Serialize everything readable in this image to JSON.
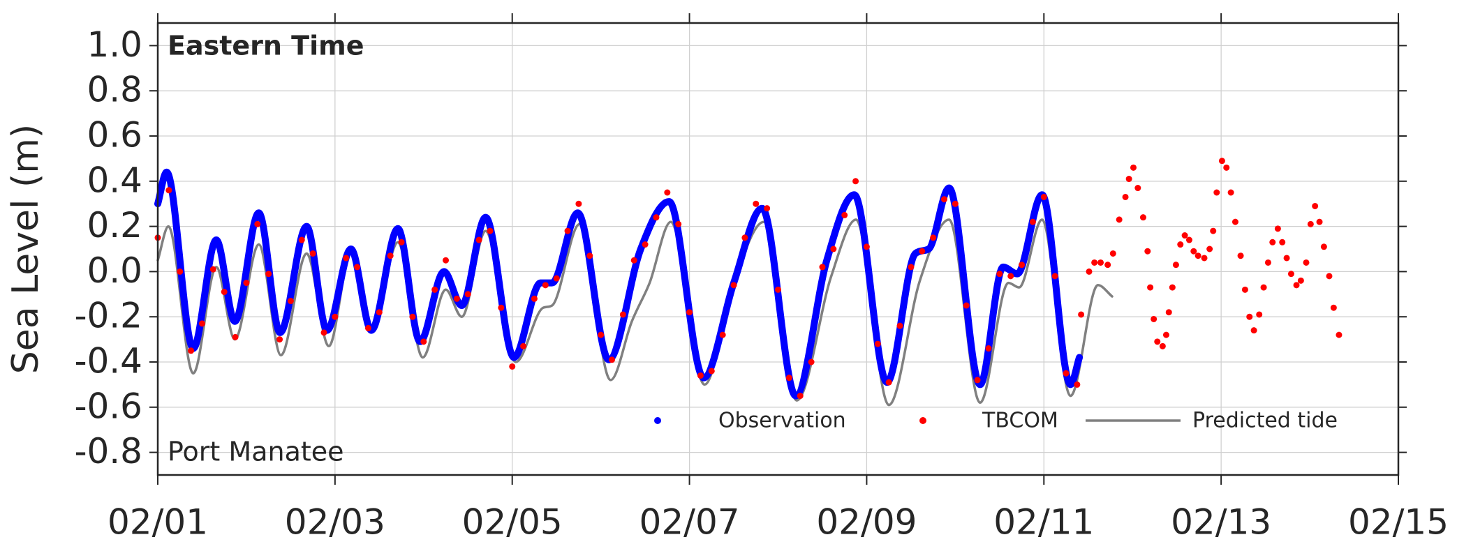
{
  "chart_data": {
    "type": "line",
    "annotations": [
      "Eastern Time",
      "Port Manatee"
    ],
    "ylabel": "Sea Level (m)",
    "xlim": [
      1,
      15
    ],
    "xticks": [
      {
        "value": 1,
        "label": "02/01"
      },
      {
        "value": 3,
        "label": "02/03"
      },
      {
        "value": 5,
        "label": "02/05"
      },
      {
        "value": 7,
        "label": "02/07"
      },
      {
        "value": 9,
        "label": "02/09"
      },
      {
        "value": 11,
        "label": "02/11"
      },
      {
        "value": 13,
        "label": "02/13"
      },
      {
        "value": 15,
        "label": "02/15"
      }
    ],
    "ylim": [
      -0.9,
      1.1
    ],
    "yticks": [
      -0.8,
      -0.6,
      -0.4,
      -0.2,
      {
        "value": 0,
        "label": "0.0"
      },
      0.2,
      0.4,
      0.6,
      0.8,
      {
        "value": 1,
        "label": "1.0"
      }
    ],
    "grid": true,
    "legend": "lower right",
    "series": [
      {
        "name": "Observation",
        "color": "#0000ff",
        "mode": "dense-markers",
        "x": [
          1.0,
          1.1,
          1.4,
          1.66,
          1.87,
          2.14,
          2.38,
          2.68,
          2.91,
          3.18,
          3.41,
          3.71,
          3.96,
          4.23,
          4.43,
          4.7,
          5.02,
          5.32,
          5.45,
          5.74,
          6.09,
          6.45,
          6.77,
          7.16,
          7.5,
          7.82,
          8.2,
          8.55,
          8.86,
          9.23,
          9.55,
          9.7,
          9.93,
          10.28,
          10.54,
          10.7,
          10.98,
          11.3,
          11.4
        ],
        "values": [
          0.3,
          0.44,
          -0.34,
          0.14,
          -0.22,
          0.26,
          -0.27,
          0.2,
          -0.26,
          0.1,
          -0.26,
          0.19,
          -0.31,
          0.0,
          -0.15,
          0.24,
          -0.38,
          -0.05,
          -0.05,
          0.26,
          -0.39,
          0.1,
          0.31,
          -0.47,
          -0.05,
          0.28,
          -0.55,
          0.05,
          0.34,
          -0.49,
          0.08,
          0.1,
          0.37,
          -0.5,
          0.02,
          -0.01,
          0.34,
          -0.5,
          -0.38
        ]
      },
      {
        "name": "TBCOM",
        "color": "#ff0000",
        "mode": "markers",
        "x": [
          1.0,
          1.125,
          1.25,
          1.375,
          1.5,
          1.625,
          1.75,
          1.875,
          2.0,
          2.125,
          2.25,
          2.375,
          2.5,
          2.625,
          2.75,
          2.875,
          3.0,
          3.125,
          3.25,
          3.375,
          3.5,
          3.625,
          3.75,
          3.875,
          4.0,
          4.125,
          4.25,
          4.375,
          4.5,
          4.625,
          4.75,
          4.875,
          5.0,
          5.125,
          5.25,
          5.375,
          5.5,
          5.625,
          5.75,
          5.875,
          6.0,
          6.125,
          6.25,
          6.375,
          6.5,
          6.625,
          6.75,
          6.875,
          7.0,
          7.125,
          7.25,
          7.375,
          7.5,
          7.625,
          7.75,
          7.875,
          8.0,
          8.125,
          8.25,
          8.375,
          8.5,
          8.625,
          8.75,
          8.875,
          9.0,
          9.125,
          9.25,
          9.375,
          9.5,
          9.625,
          9.75,
          9.875,
          10.0,
          10.125,
          10.25,
          10.375,
          10.5,
          10.625,
          10.75,
          10.875,
          11.0,
          11.125,
          11.25,
          11.375,
          11.42,
          11.51,
          11.57,
          11.64,
          11.72,
          11.78,
          11.85,
          11.92,
          11.96,
          12.01,
          12.06,
          12.12,
          12.17,
          12.2,
          12.24,
          12.28,
          12.34,
          12.38,
          12.41,
          12.45,
          12.49,
          12.54,
          12.59,
          12.64,
          12.69,
          12.74,
          12.81,
          12.87,
          12.91,
          12.95,
          13.01,
          13.06,
          13.11,
          13.16,
          13.22,
          13.27,
          13.32,
          13.37,
          13.43,
          13.48,
          13.53,
          13.58,
          13.64,
          13.69,
          13.74,
          13.79,
          13.85,
          13.9,
          13.96,
          14.01,
          14.06,
          14.11,
          14.16,
          14.22,
          14.27,
          14.33
        ],
        "values": [
          0.15,
          0.36,
          0.0,
          -0.35,
          -0.23,
          0.01,
          -0.09,
          -0.29,
          -0.05,
          0.21,
          -0.01,
          -0.3,
          -0.13,
          0.14,
          0.08,
          -0.27,
          -0.2,
          0.06,
          0.02,
          -0.25,
          -0.18,
          0.07,
          0.13,
          -0.2,
          -0.31,
          -0.08,
          0.05,
          -0.12,
          -0.1,
          0.14,
          0.18,
          -0.16,
          -0.42,
          -0.33,
          -0.12,
          -0.06,
          -0.03,
          0.18,
          0.3,
          0.07,
          -0.28,
          -0.39,
          -0.19,
          0.05,
          0.12,
          0.24,
          0.35,
          0.21,
          -0.18,
          -0.46,
          -0.44,
          -0.28,
          -0.06,
          0.15,
          0.3,
          0.28,
          -0.08,
          -0.47,
          -0.55,
          -0.4,
          0.02,
          0.1,
          0.25,
          0.4,
          0.11,
          -0.32,
          -0.49,
          -0.24,
          0.02,
          0.09,
          0.15,
          0.32,
          0.3,
          -0.15,
          -0.48,
          -0.34,
          -0.01,
          -0.02,
          0.03,
          0.22,
          0.33,
          -0.02,
          -0.45,
          -0.5,
          -0.19,
          0.0,
          0.04,
          0.04,
          0.03,
          0.08,
          0.23,
          0.33,
          0.41,
          0.46,
          0.37,
          0.24,
          0.09,
          -0.07,
          -0.21,
          -0.31,
          -0.33,
          -0.28,
          -0.18,
          -0.07,
          0.03,
          0.12,
          0.16,
          0.14,
          0.09,
          0.07,
          0.06,
          0.1,
          0.18,
          0.35,
          0.49,
          0.46,
          0.35,
          0.22,
          0.07,
          -0.08,
          -0.2,
          -0.26,
          -0.19,
          -0.07,
          0.04,
          0.13,
          0.19,
          0.13,
          0.06,
          -0.01,
          -0.06,
          -0.04,
          0.04,
          0.21,
          0.29,
          0.22,
          0.11,
          -0.02,
          -0.16,
          -0.28
        ]
      },
      {
        "name": "Predicted tide",
        "color": "#808080",
        "mode": "lines",
        "x": [
          1.0,
          1.12,
          1.4,
          1.66,
          1.87,
          2.14,
          2.39,
          2.68,
          2.93,
          3.18,
          3.41,
          3.71,
          3.99,
          4.25,
          4.43,
          4.7,
          5.04,
          5.35,
          5.45,
          5.76,
          6.11,
          6.35,
          6.55,
          6.79,
          7.17,
          7.5,
          7.84,
          8.21,
          8.6,
          8.88,
          9.25,
          9.6,
          9.93,
          10.28,
          10.6,
          10.72,
          10.98,
          11.3,
          11.61,
          11.77
        ],
        "values": [
          0.05,
          0.2,
          -0.45,
          0.02,
          -0.3,
          0.12,
          -0.37,
          0.08,
          -0.33,
          0.08,
          -0.27,
          0.13,
          -0.38,
          -0.08,
          -0.2,
          0.18,
          -0.4,
          -0.16,
          -0.15,
          0.21,
          -0.48,
          -0.22,
          -0.05,
          0.22,
          -0.5,
          -0.05,
          0.22,
          -0.57,
          -0.02,
          0.23,
          -0.59,
          -0.04,
          0.23,
          -0.58,
          -0.05,
          -0.07,
          0.23,
          -0.55,
          -0.06,
          -0.11
        ]
      }
    ]
  }
}
